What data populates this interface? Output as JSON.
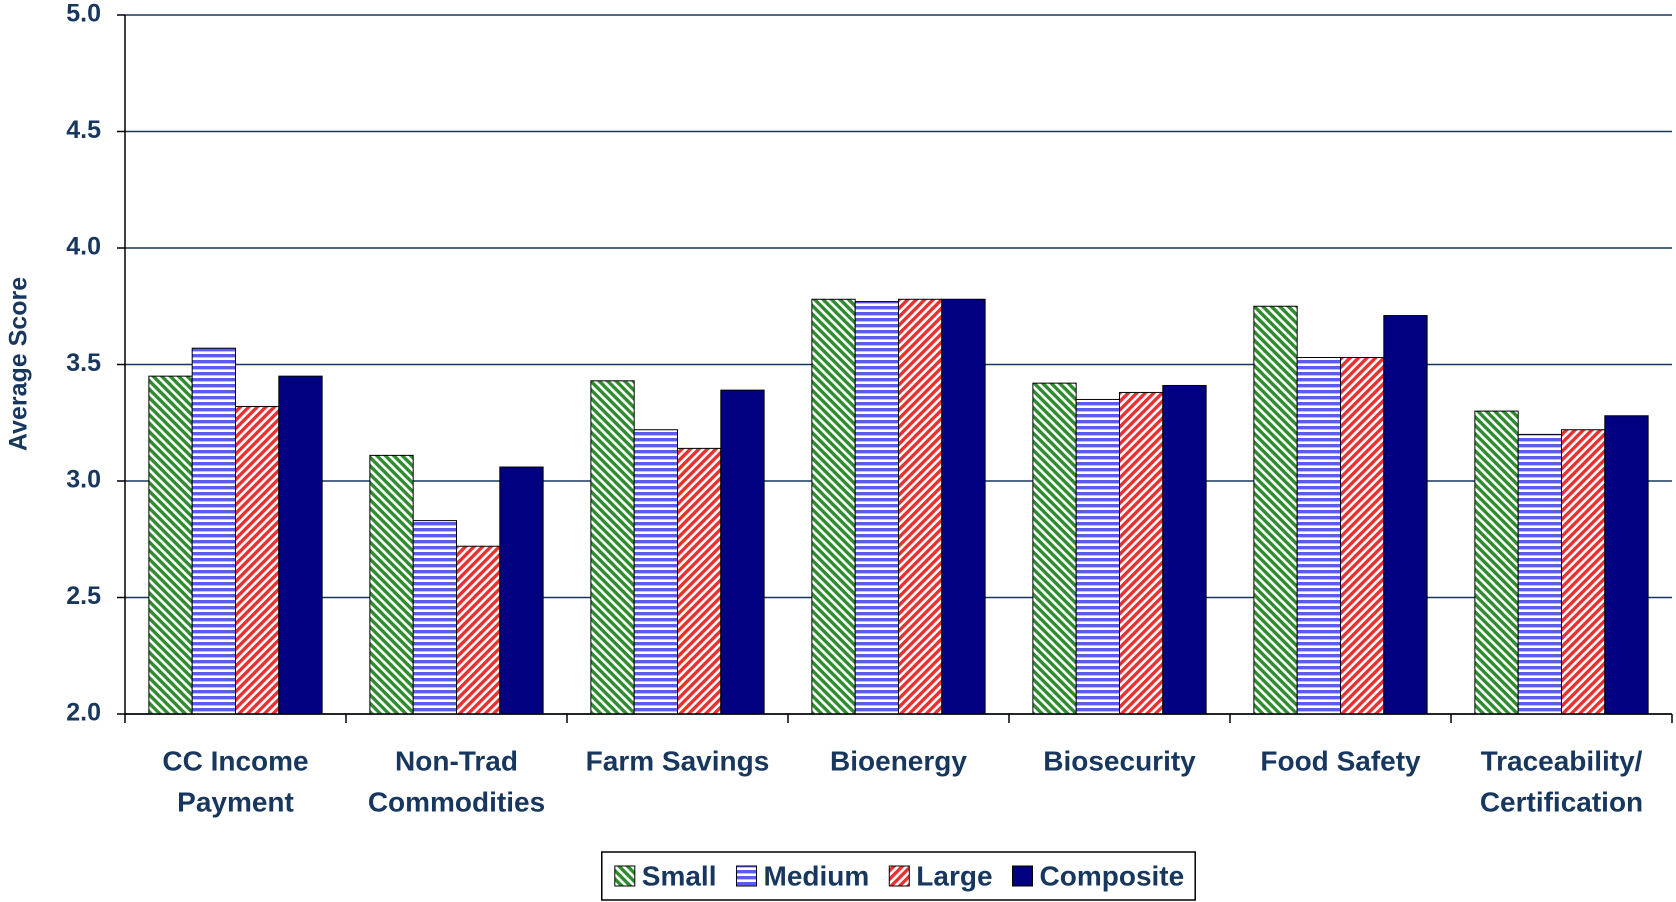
{
  "chart_data": {
    "type": "bar",
    "y_label": "Average Score",
    "categories": [
      [
        "CC Income",
        "Payment"
      ],
      [
        "Non-Trad",
        "Commodities"
      ],
      [
        "Farm Savings"
      ],
      [
        "Bioenergy"
      ],
      [
        "Biosecurity"
      ],
      [
        "Food Safety"
      ],
      [
        "Traceability/",
        "Certification"
      ]
    ],
    "series": [
      {
        "name": "Small",
        "color": "#2e8b2e",
        "pattern": "diagonal-down",
        "values": [
          3.45,
          3.11,
          3.43,
          3.78,
          3.42,
          3.75,
          3.3
        ]
      },
      {
        "name": "Medium",
        "color": "#5b5bf0",
        "pattern": "horizontal",
        "values": [
          3.57,
          2.83,
          3.22,
          3.77,
          3.35,
          3.53,
          3.2
        ]
      },
      {
        "name": "Large",
        "color": "#e83030",
        "pattern": "diagonal-up",
        "values": [
          3.32,
          2.72,
          3.14,
          3.78,
          3.38,
          3.53,
          3.22
        ]
      },
      {
        "name": "Composite",
        "color": "#000080",
        "pattern": "solid",
        "values": [
          3.45,
          3.06,
          3.39,
          3.78,
          3.41,
          3.71,
          3.28
        ]
      }
    ],
    "ylim": [
      2.0,
      5.0
    ],
    "yticks": [
      {
        "value": 2,
        "label": "2.0"
      },
      2.5,
      {
        "value": 3,
        "label": "3.0"
      },
      3.5,
      {
        "value": 4,
        "label": "4.0"
      },
      4.5,
      {
        "value": 5,
        "label": "5.0"
      }
    ],
    "grid": true,
    "legend": "bottom"
  }
}
